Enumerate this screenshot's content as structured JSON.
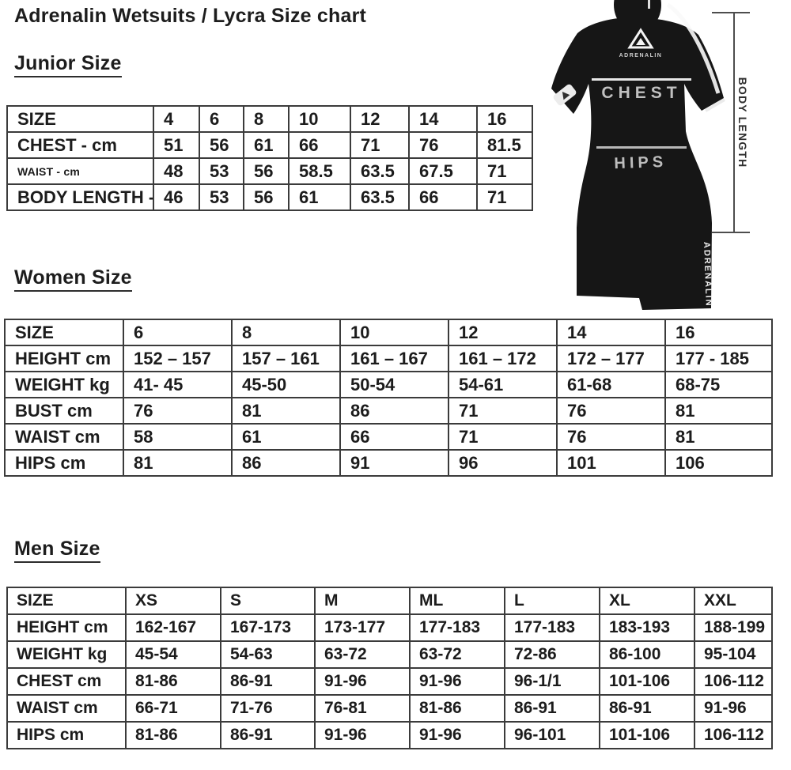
{
  "page": {
    "title": "Adrenalin Wetsuits / Lycra Size chart"
  },
  "junior": {
    "heading": "Junior Size",
    "rows": [
      [
        "SIZE",
        "4",
        "6",
        "8",
        "10",
        "12",
        "14",
        "16"
      ],
      [
        "CHEST - cm",
        "51",
        "56",
        "61",
        "66",
        "71",
        "76",
        "81.5"
      ],
      [
        "WAIST - cm",
        "48",
        "53",
        "56",
        "58.5",
        "63.5",
        "67.5",
        "71"
      ],
      [
        "BODY LENGTH - cm",
        "46",
        "53",
        "56",
        "61",
        "63.5",
        "66",
        "71"
      ]
    ]
  },
  "women": {
    "heading": "Women Size",
    "rows": [
      [
        "SIZE",
        "6",
        "8",
        "10",
        "12",
        "14",
        "16"
      ],
      [
        "HEIGHT cm",
        "152 – 157",
        "157 – 161",
        "161 – 167",
        "161 – 172",
        "172 – 177",
        "177 - 185"
      ],
      [
        "WEIGHT kg",
        "41- 45",
        "45-50",
        "50-54",
        "54-61",
        "61-68",
        "68-75"
      ],
      [
        "BUST cm",
        "76",
        "81",
        "86",
        "71",
        "76",
        "81"
      ],
      [
        "WAIST cm",
        "58",
        "61",
        "66",
        "71",
        "76",
        "81"
      ],
      [
        "HIPS cm",
        "81",
        "86",
        "91",
        "96",
        "101",
        "106"
      ]
    ]
  },
  "men": {
    "heading": "Men Size",
    "rows": [
      [
        "SIZE",
        "XS",
        "S",
        "M",
        "ML",
        "L",
        "XL",
        "XXL"
      ],
      [
        "HEIGHT cm",
        "162-167",
        "167-173",
        "173-177",
        "177-183",
        "177-183",
        "183-193",
        "188-199"
      ],
      [
        "WEIGHT kg",
        "45-54",
        "54-63",
        "63-72",
        "63-72",
        "72-86",
        "86-100",
        "95-104"
      ],
      [
        "CHEST cm",
        "81-86",
        "86-91",
        "91-96",
        "91-96",
        "96-1/1",
        "101-106",
        "106-112"
      ],
      [
        "WAIST cm",
        "66-71",
        "71-76",
        "76-81",
        "81-86",
        "86-91",
        "86-91",
        "91-96"
      ],
      [
        "HIPS cm",
        "81-86",
        "86-91",
        "91-96",
        "91-96",
        "96-101",
        "101-106",
        "106-112"
      ]
    ]
  },
  "figure": {
    "chest_label": "CHEST",
    "hips_label": "HIPS",
    "body_length_label": "BODY LENGTH",
    "brand": "ADRENALIN"
  }
}
